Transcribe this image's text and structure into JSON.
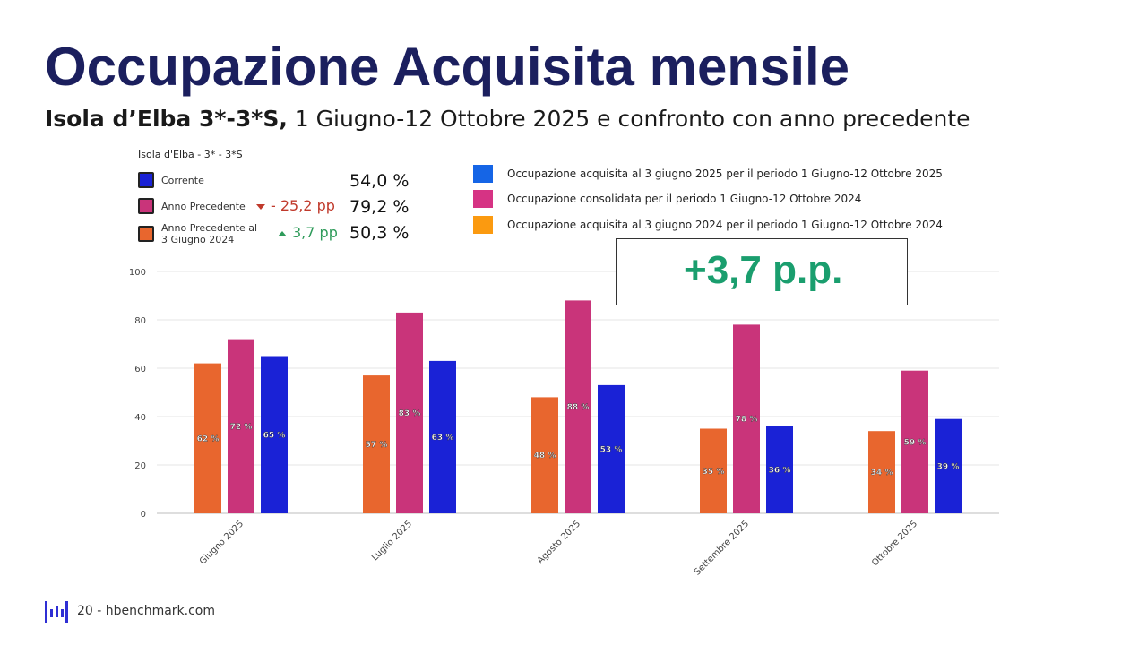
{
  "page": {
    "title": "Occupazione Acquisita mensile",
    "subtitle_bold": "Isola d’Elba 3*-3*S,",
    "subtitle_rest": " 1 Giugno-12 Ottobre 2025 e confronto con anno precedente"
  },
  "kpi": {
    "title": "Isola d'Elba - 3* - 3*S",
    "rows": [
      {
        "label": "Corrente",
        "value": "54,0 %",
        "delta": "",
        "trend": "",
        "color": "#1a22d6"
      },
      {
        "label": "Anno Precedente",
        "value": "79,2 %",
        "delta": "- 25,2 pp",
        "trend": "down",
        "color": "#c9347a"
      },
      {
        "label_line1": "Anno Precedente al",
        "label_line2": "3 Giugno 2024",
        "value": "50,3 %",
        "delta": "3,7 pp",
        "trend": "up",
        "color": "#e8662e"
      }
    ]
  },
  "legend": [
    {
      "label": "Occupazione acquisita al 3 giugno 2025 per il periodo 1 Giugno-12 Ottobre 2025",
      "color": "#1565e6"
    },
    {
      "label": "Occupazione consolidata per il periodo 1 Giugno-12 Ottobre 2024",
      "color": "#d63384"
    },
    {
      "label": "Occupazione acquisita al 3 giugno 2024 per il periodo 1 Giugno-12 Ottobre 2024",
      "color": "#fb9a10"
    }
  ],
  "callout": {
    "text": "+3,7 p.p."
  },
  "footer": {
    "page": "20",
    "text": "20 - hbenchmark.com"
  },
  "chart_data": {
    "type": "bar",
    "categories": [
      "Giugno 2025",
      "Luglio 2025",
      "Agosto 2025",
      "Settembre 2025",
      "Ottobre 2025"
    ],
    "series": [
      {
        "values": [
          62,
          57,
          48,
          35,
          34
        ],
        "labels": [
          "62 %",
          "57 %",
          "48 %",
          "35 %",
          "34 %"
        ],
        "color": "#e8662e"
      },
      {
        "values": [
          72,
          83,
          88,
          78,
          59
        ],
        "labels": [
          "72 %",
          "83 %",
          "88 %",
          "78 %",
          "59 %"
        ],
        "color": "#c9347a"
      },
      {
        "values": [
          65,
          63,
          53,
          36,
          39
        ],
        "labels": [
          "65 %",
          "63 %",
          "53 %",
          "36 %",
          "39 %"
        ],
        "color": "#1a22d6"
      }
    ],
    "ylim": [
      0,
      100
    ],
    "yticks": [
      "0",
      "20",
      "40",
      "60",
      "80",
      "100"
    ],
    "grid": true
  }
}
